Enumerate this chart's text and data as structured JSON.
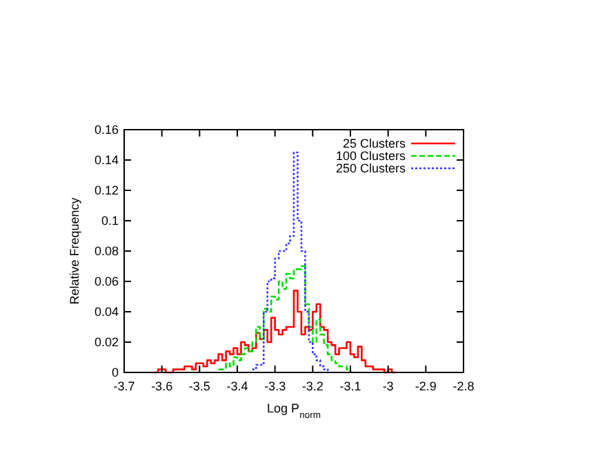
{
  "chart_data": {
    "type": "step",
    "xlabel": "Log P$_{norm}$",
    "ylabel": "Relative Frequency",
    "xlim": [
      -3.7,
      -2.8
    ],
    "ylim": [
      0,
      0.16
    ],
    "xticks": [
      -3.7,
      -3.6,
      -3.5,
      -3.4,
      -3.3,
      -3.2,
      -3.1,
      -3,
      -2.9,
      -2.8
    ],
    "yticks": [
      0,
      0.02,
      0.04,
      0.06,
      0.08,
      0.1,
      0.12,
      0.14,
      0.16
    ],
    "legend": "top right",
    "grid": false,
    "series": [
      {
        "name": "25 Clusters",
        "color": "#ff0000",
        "line_style": "solid",
        "x": [
          -3.62,
          -3.61,
          -3.6,
          -3.59,
          -3.58,
          -3.57,
          -3.56,
          -3.55,
          -3.54,
          -3.53,
          -3.52,
          -3.51,
          -3.5,
          -3.49,
          -3.48,
          -3.47,
          -3.46,
          -3.45,
          -3.44,
          -3.43,
          -3.42,
          -3.41,
          -3.4,
          -3.39,
          -3.38,
          -3.37,
          -3.36,
          -3.35,
          -3.34,
          -3.33,
          -3.32,
          -3.31,
          -3.3,
          -3.29,
          -3.28,
          -3.27,
          -3.26,
          -3.25,
          -3.24,
          -3.23,
          -3.22,
          -3.21,
          -3.2,
          -3.19,
          -3.18,
          -3.17,
          -3.16,
          -3.15,
          -3.14,
          -3.13,
          -3.12,
          -3.11,
          -3.1,
          -3.09,
          -3.08,
          -3.07,
          -3.06,
          -3.05,
          -3.04,
          -3.03,
          -3.02,
          -3.01,
          -3,
          -2.99,
          -2.98
        ],
        "values": [
          0,
          0.002,
          0.002,
          0,
          0,
          0.002,
          0.002,
          0.002,
          0.004,
          0.004,
          0.002,
          0.006,
          0.006,
          0.004,
          0.008,
          0.006,
          0.008,
          0.012,
          0.008,
          0.014,
          0.012,
          0.016,
          0.012,
          0.02,
          0.018,
          0.014,
          0.016,
          0.026,
          0.022,
          0.028,
          0.02,
          0.036,
          0.028,
          0.025,
          0.028,
          0.03,
          0.03,
          0.054,
          0.04,
          0.025,
          0.03,
          0.028,
          0.04,
          0.045,
          0.03,
          0.028,
          0.02,
          0.018,
          0.012,
          0.016,
          0.016,
          0.02,
          0.012,
          0.01,
          0.017,
          0.008,
          0.004,
          0.004,
          0.002,
          0.002,
          0.002,
          0,
          0.002,
          0,
          0
        ]
      },
      {
        "name": "100 Clusters",
        "color": "#00dd00",
        "line_style": "dashed",
        "x": [
          -3.45,
          -3.44,
          -3.43,
          -3.42,
          -3.41,
          -3.4,
          -3.39,
          -3.38,
          -3.37,
          -3.36,
          -3.35,
          -3.34,
          -3.33,
          -3.32,
          -3.31,
          -3.3,
          -3.29,
          -3.28,
          -3.27,
          -3.26,
          -3.25,
          -3.24,
          -3.23,
          -3.22,
          -3.21,
          -3.2,
          -3.19,
          -3.18,
          -3.17,
          -3.16,
          -3.15,
          -3.14,
          -3.13,
          -3.12,
          -3.11,
          -3.1
        ],
        "values": [
          0.002,
          0.002,
          0.006,
          0.004,
          0.01,
          0.008,
          0.012,
          0.016,
          0.014,
          0.02,
          0.03,
          0.022,
          0.042,
          0.04,
          0.05,
          0.048,
          0.06,
          0.055,
          0.065,
          0.062,
          0.068,
          0.068,
          0.07,
          0.045,
          0.03,
          0.02,
          0.035,
          0.025,
          0.018,
          0.012,
          0.008,
          0.006,
          0.004,
          0.004,
          0.002,
          0
        ]
      },
      {
        "name": "250 Clusters",
        "color": "#3333ff",
        "line_style": "dotted",
        "x": [
          -3.36,
          -3.35,
          -3.34,
          -3.33,
          -3.32,
          -3.31,
          -3.3,
          -3.29,
          -3.28,
          -3.27,
          -3.26,
          -3.25,
          -3.24,
          -3.23,
          -3.22,
          -3.21,
          -3.2,
          -3.19,
          -3.18,
          -3.17,
          -3.16
        ],
        "values": [
          0.002,
          0.005,
          0.005,
          0.04,
          0.06,
          0.062,
          0.075,
          0.08,
          0.08,
          0.085,
          0.09,
          0.145,
          0.1,
          0.08,
          0.04,
          0.02,
          0.012,
          0.008,
          0.004,
          0.002,
          0
        ]
      }
    ]
  }
}
